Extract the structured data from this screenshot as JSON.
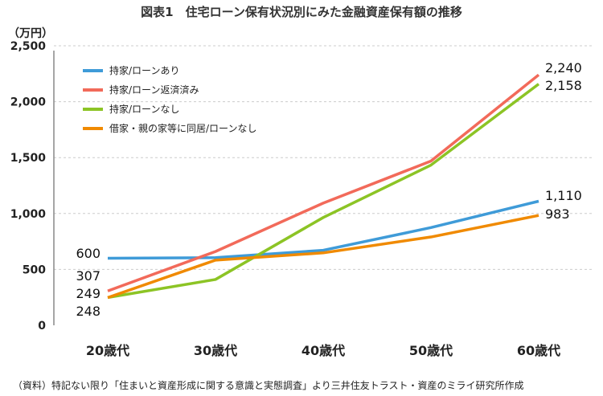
{
  "chart_data": {
    "type": "line",
    "title": "図表1　住宅ローン保有状況別にみた金融資産保有額の推移",
    "ylabel": "（万円）",
    "xlabel": "",
    "categories": [
      "20歳代",
      "30歳代",
      "40歳代",
      "50歳代",
      "60歳代"
    ],
    "ylim": [
      0,
      2500
    ],
    "yticks": [
      "0",
      "500",
      "1,000",
      "1,500",
      "2,000",
      "2,500"
    ],
    "grid": true,
    "legend_position": "top-left",
    "series": [
      {
        "name": "持家/ローンあり",
        "color": "#3f9bd8",
        "values": [
          600,
          605,
          671,
          874,
          1110
        ],
        "labels": [
          "600",
          "1,110"
        ]
      },
      {
        "name": "持家/ローン返済済み",
        "color": "#f26a5a",
        "values": [
          307,
          660,
          1093,
          1469,
          2240
        ],
        "labels": [
          "307",
          "2,240"
        ]
      },
      {
        "name": "持家/ローンなし",
        "color": "#8cc425",
        "values": [
          249,
          410,
          964,
          1433,
          2158
        ],
        "labels": [
          "249",
          "2,158"
        ]
      },
      {
        "name": "借家・親の家等に同居/ローンなし",
        "color": "#f08a00",
        "values": [
          248,
          583,
          648,
          790,
          983
        ],
        "labels": [
          "248",
          "983"
        ]
      }
    ],
    "source": "（資料）特記ない限り「住まいと資産形成に関する意識と実態調査」より三井住友トラスト・資産のミライ研究所作成"
  }
}
